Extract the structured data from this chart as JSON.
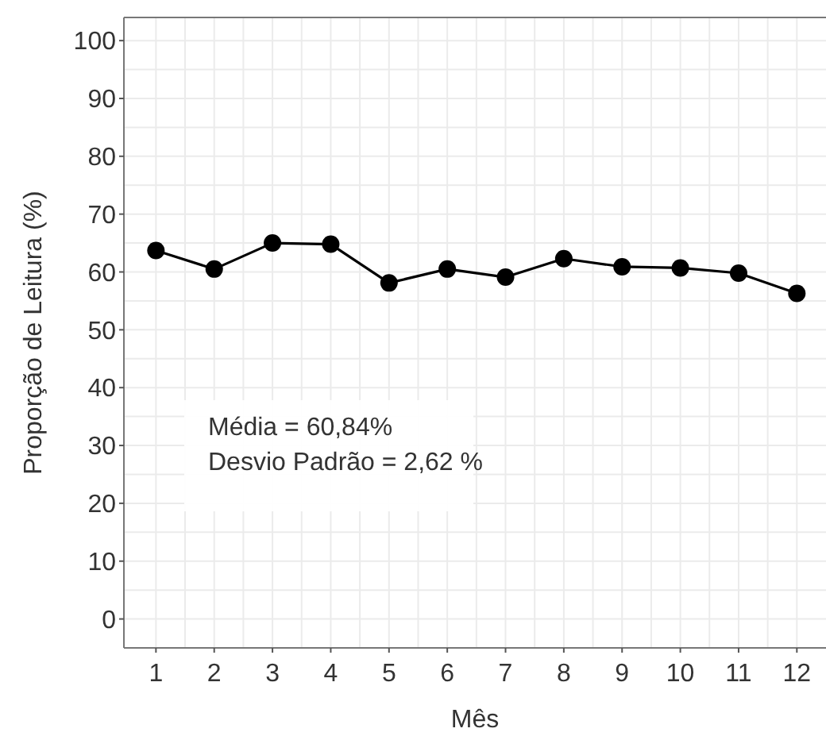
{
  "chart_data": {
    "type": "line",
    "xlabel": "Mês",
    "ylabel": "Proporção de Leitura (%)",
    "x": [
      1,
      2,
      3,
      4,
      5,
      6,
      7,
      8,
      9,
      10,
      11,
      12
    ],
    "series": [
      {
        "color": "#000000",
        "values": [
          63.7,
          60.5,
          65.0,
          64.8,
          58.1,
          60.5,
          59.1,
          62.3,
          60.9,
          60.7,
          59.8,
          56.3
        ]
      }
    ],
    "xlim": [
      0.45,
      12.5
    ],
    "xticks": [
      1,
      2,
      3,
      4,
      5,
      6,
      7,
      8,
      9,
      10,
      11,
      12
    ],
    "ylim": [
      -5,
      104
    ],
    "yticks": [
      0,
      10,
      20,
      30,
      40,
      50,
      60,
      70,
      80,
      90,
      100
    ],
    "grid": true,
    "marker": "circle",
    "line_style": "solid",
    "annotations": [
      "Média = 60,84%",
      "Desvio Padrão = 2,62 %"
    ]
  }
}
